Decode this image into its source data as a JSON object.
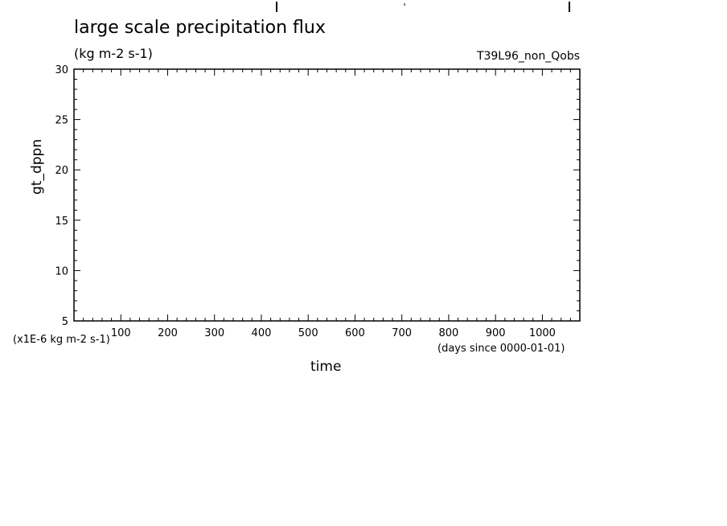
{
  "chart_data": {
    "type": "line",
    "title": "large scale precipitation flux",
    "units": "(kg m-2 s-1)",
    "run_label": "T39L96_non_Qobs",
    "ylabel": "gt_dppn",
    "yunits": "(x1E-6 kg m-2 s-1)",
    "xlabel": "time",
    "xunits": "(days since 0000-01-01)",
    "xlim": [
      0,
      1080
    ],
    "ylim": [
      5,
      30
    ],
    "xticks": [
      100,
      200,
      300,
      400,
      500,
      600,
      700,
      800,
      900,
      1000
    ],
    "yticks": [
      5,
      10,
      15,
      20,
      25,
      30
    ],
    "series": [],
    "grid": false
  }
}
